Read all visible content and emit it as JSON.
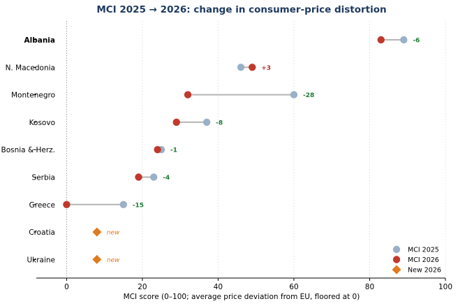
{
  "chart_data": {
    "type": "dumbbell",
    "title": "MCI 2025 → 2026: change in consumer-price distortion",
    "xlabel": "MCI score (0–100; average price deviation from EU, floored at 0)",
    "ylabel": "",
    "xlim": [
      -8,
      100
    ],
    "xticks": [
      0,
      20,
      40,
      60,
      80,
      100
    ],
    "grid": "vertical",
    "legend_position": "bottom-right",
    "legend": [
      {
        "key": "y2025",
        "label": "MCI 2025",
        "marker": "circle",
        "color": "#9ab0c9"
      },
      {
        "key": "y2026",
        "label": "MCI 2026",
        "marker": "circle",
        "color": "#c0392b"
      },
      {
        "key": "new",
        "label": "New 2026",
        "marker": "diamond",
        "color": "#e07a1f"
      }
    ],
    "countries": [
      {
        "name": "Albania",
        "bold": true,
        "y2025": 89,
        "y2026": 83,
        "change_label": "-6"
      },
      {
        "name": "N. Macedonia",
        "bold": false,
        "y2025": 46,
        "y2026": 49,
        "change_label": "+3"
      },
      {
        "name": "Montenegro",
        "bold": false,
        "y2025": 60,
        "y2026": 32,
        "change_label": "-28"
      },
      {
        "name": "Kosovo",
        "bold": false,
        "y2025": 37,
        "y2026": 29,
        "change_label": "-8"
      },
      {
        "name": "Bosnia & Herz.",
        "bold": false,
        "y2025": 25,
        "y2026": 24,
        "change_label": "-1"
      },
      {
        "name": "Serbia",
        "bold": false,
        "y2025": 23,
        "y2026": 19,
        "change_label": "-4"
      },
      {
        "name": "Greece",
        "bold": false,
        "y2025": 15,
        "y2026": 0,
        "change_label": "-15"
      },
      {
        "name": "Croatia",
        "bold": false,
        "y2025": null,
        "y2026": 8,
        "is_new": true,
        "change_label": "new"
      },
      {
        "name": "Ukraine",
        "bold": false,
        "y2025": null,
        "y2026": 8,
        "is_new": true,
        "change_label": "new"
      }
    ],
    "colors": {
      "title": "#1f3a5f",
      "connector": "#b5b5b5",
      "decrease": "#1e7b34",
      "increase": "#b03a2e",
      "new": "#e07a1f",
      "grid": "#e8e8e8",
      "zero_line": "#9a9a9a"
    }
  }
}
